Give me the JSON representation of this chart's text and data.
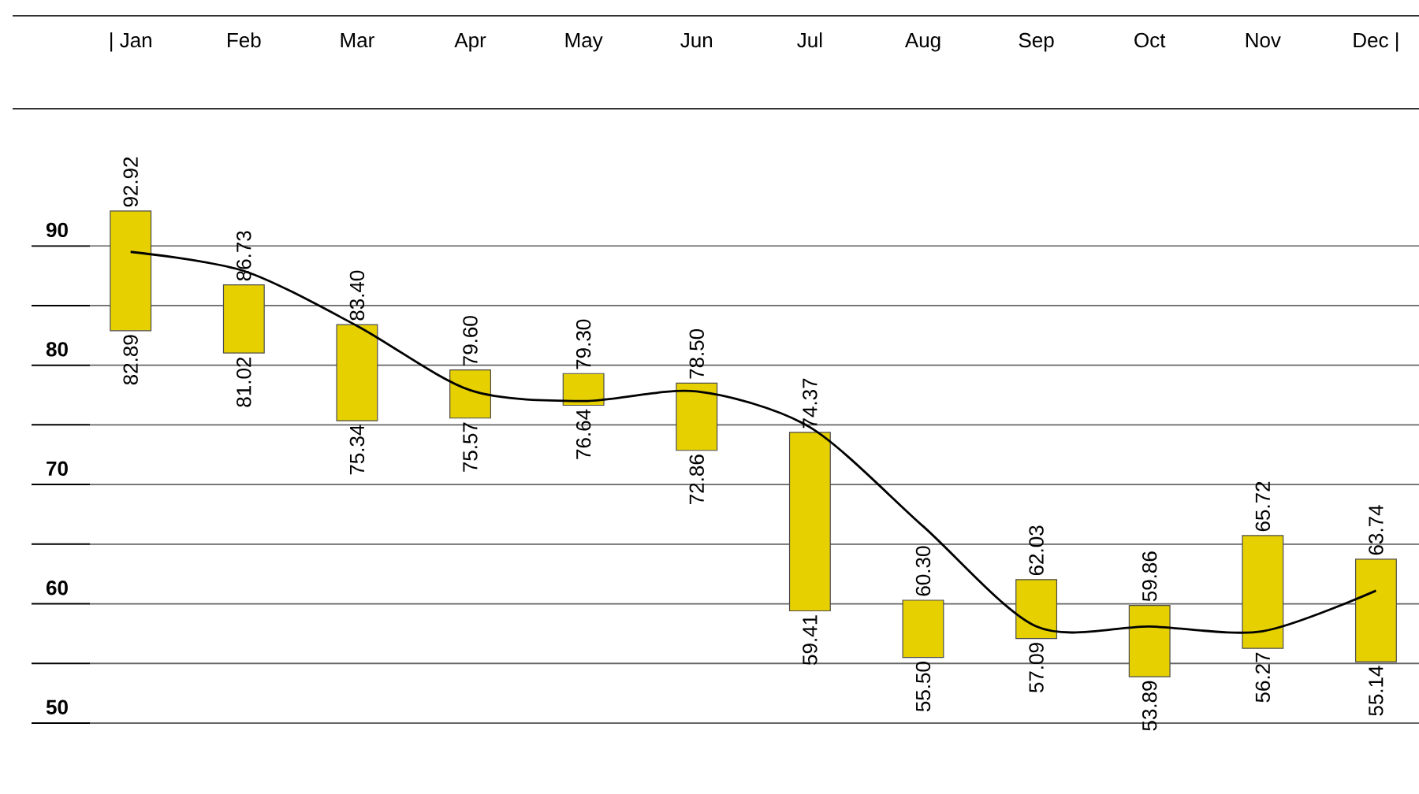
{
  "chart_data": {
    "type": "bar",
    "categories": [
      "| Jan",
      "Feb",
      "Mar",
      "Apr",
      "May",
      "Jun",
      "Jul",
      "Aug",
      "Sep",
      "Oct",
      "Nov",
      "Dec |"
    ],
    "base": [
      82.89,
      81.02,
      75.34,
      75.57,
      76.64,
      72.86,
      59.41,
      55.5,
      57.09,
      53.89,
      56.27,
      55.14
    ],
    "values": [
      10.03,
      5.71,
      8.06,
      4.03,
      2.66,
      5.64,
      14.96,
      4.8,
      4.94,
      5.97,
      9.45,
      8.6
    ],
    "value_labels": [
      "92.92",
      "86.73",
      "83.40",
      "79.60",
      "79.30",
      "78.50",
      "74.37",
      "60.30",
      "62.03",
      "59.86",
      "65.72",
      "63.74"
    ],
    "color": "#e6d000",
    "series": [
      {
        "type": "line",
        "color": "#000000",
        "values": [
          89.5,
          87.9,
          83.3,
          77.9,
          77.0,
          77.8,
          74.8,
          66.5,
          58.1,
          58.1,
          57.7,
          61.1
        ]
      }
    ],
    "annotations": [
      "82.89",
      "81.02",
      "75.34",
      "75.57",
      "76.64",
      "72.86",
      "59.41",
      "55.50",
      "57.09",
      "53.89",
      "56.27",
      "55.14"
    ],
    "ylim": [
      50,
      101.5
    ],
    "yticks": [
      50,
      {
        "value": 55,
        "label": null
      },
      60,
      {
        "value": 65,
        "label": null
      },
      70,
      {
        "value": 75,
        "label": null
      },
      80,
      {
        "value": 85,
        "label": null
      },
      90
    ],
    "grid": "y",
    "marker": "none",
    "line_style": "solid"
  }
}
